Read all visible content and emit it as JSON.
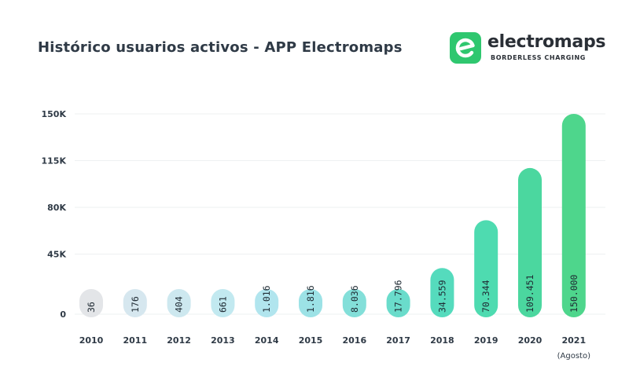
{
  "header": {
    "title": "Histórico usuarios activos - APP Electromaps"
  },
  "logo": {
    "name": "electromaps",
    "tagline": "BORDERLESS CHARGING",
    "brand_color": "#2fc76f",
    "icon": "electromaps-e-icon"
  },
  "chart_data": {
    "type": "bar",
    "title": "Histórico usuarios activos - APP Electromaps",
    "xlabel": "",
    "ylabel": "",
    "categories": [
      "2010",
      "2011",
      "2012",
      "2013",
      "2014",
      "2015",
      "2016",
      "2017",
      "2018",
      "2019",
      "2020",
      "2021"
    ],
    "category_sublabels": [
      "",
      "",
      "",
      "",
      "",
      "",
      "",
      "",
      "",
      "",
      "",
      "(Agosto)"
    ],
    "values": [
      36,
      176,
      404,
      661,
      1016,
      1816,
      8036,
      17796,
      34559,
      70344,
      109451,
      150000
    ],
    "data_labels": [
      "36",
      "176",
      "404",
      "661",
      "1.016",
      "1.816",
      "8.036",
      "17.796",
      "34.559",
      "70.344",
      "109.451",
      "150.000"
    ],
    "yticks": [
      0,
      45000,
      80000,
      115000,
      150000
    ],
    "ytick_labels": [
      "0",
      "45K",
      "80K",
      "115K",
      "150K"
    ],
    "ylim": [
      0,
      150000
    ],
    "grid": true,
    "legend": "none",
    "colors": [
      "#e3e5e8",
      "#d6e7ef",
      "#cde8ef",
      "#c2e9f0",
      "#b1e5ee",
      "#9ce2e6",
      "#83dfd9",
      "#6adccb",
      "#55dbbd",
      "#4edbb0",
      "#4bd79f",
      "#4ed68c"
    ]
  }
}
